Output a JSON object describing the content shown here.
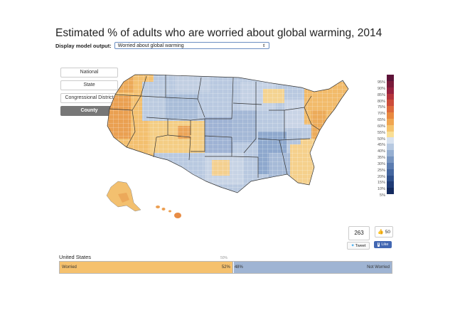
{
  "title": "Estimated % of adults who are worried about global warming, 2014",
  "control": {
    "label": "Display model output:",
    "selected": "Worried about global warming"
  },
  "geo_buttons": [
    {
      "label": "National",
      "active": false
    },
    {
      "label": "State",
      "active": false
    },
    {
      "label": "Congressional District",
      "active": false
    },
    {
      "label": "County",
      "active": true
    }
  ],
  "map": {
    "region": "United States",
    "level": "County",
    "insets": [
      "Alaska",
      "Hawaii"
    ]
  },
  "legend": {
    "labels": [
      "95%",
      "90%",
      "85%",
      "80%",
      "75%",
      "70%",
      "65%",
      "60%",
      "55%",
      "50%",
      "45%",
      "40%",
      "35%",
      "30%",
      "25%",
      "20%",
      "15%",
      "10%",
      "5%"
    ],
    "colors": [
      "#5e1338",
      "#7a1a3a",
      "#96213f",
      "#b5343c",
      "#cc4c3a",
      "#dd6a3c",
      "#e8893f",
      "#f0a651",
      "#f5c36d",
      "#f9df96",
      "#d8e2ef",
      "#b7c9e1",
      "#96afd1",
      "#7895c0",
      "#5b7cb0",
      "#44669f",
      "#2f508b",
      "#1f3b75",
      "#132a5e"
    ]
  },
  "social": {
    "tweet_count": "263",
    "tweet_label": "Tweet",
    "like_count": "50",
    "like_label": "Like"
  },
  "bar": {
    "region": "United States",
    "midpoint_label": "50%",
    "worried": {
      "label": "Worried",
      "percent": 52,
      "percent_label": "52%",
      "color": "#f5c16e"
    },
    "not_worried": {
      "label": "Not Worried",
      "percent": 48,
      "percent_label": "48%",
      "color": "#9fb4d3"
    }
  }
}
